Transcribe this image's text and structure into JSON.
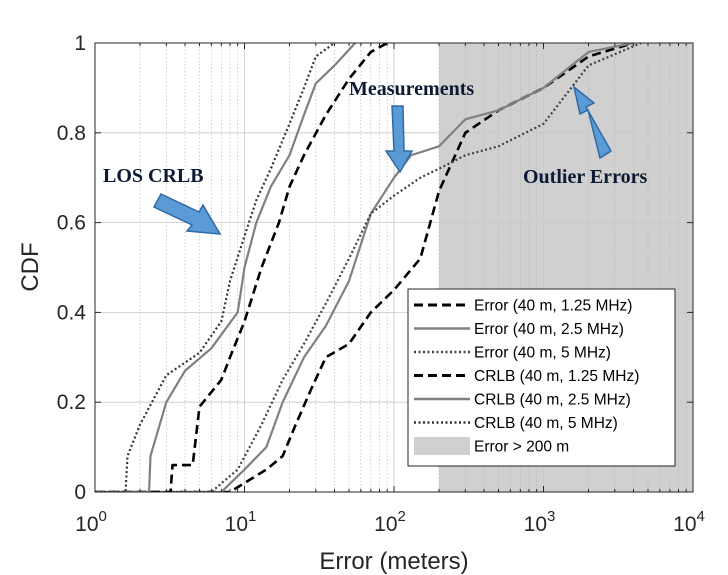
{
  "chart_data": {
    "type": "line",
    "title": "",
    "xlabel": "Error (meters)",
    "ylabel": "CDF",
    "xscale": "log",
    "xlim": [
      1,
      10000
    ],
    "ylim": [
      0,
      1
    ],
    "grid": true,
    "x_ticks": [
      {
        "value": 1,
        "base": "10",
        "exp": "0"
      },
      {
        "value": 10,
        "base": "10",
        "exp": "1"
      },
      {
        "value": 100,
        "base": "10",
        "exp": "2"
      },
      {
        "value": 1000,
        "base": "10",
        "exp": "3"
      },
      {
        "value": 10000,
        "base": "10",
        "exp": "4"
      }
    ],
    "y_ticks": [
      {
        "value": 0,
        "label": "0"
      },
      {
        "value": 0.2,
        "label": "0.2"
      },
      {
        "value": 0.4,
        "label": "0.4"
      },
      {
        "value": 0.6,
        "label": "0.6"
      },
      {
        "value": 0.8,
        "label": "0.8"
      },
      {
        "value": 1,
        "label": "1"
      }
    ],
    "shaded_region": {
      "name": "Error > 200 m",
      "x_start": 200,
      "x_end": 10000,
      "color": "#d0d0d0"
    },
    "legend_position": "lower-right",
    "series": [
      {
        "name": "Error (40 m, 1.25 MHz)",
        "style": "dashed",
        "color": "#000000",
        "x": [
          1,
          8,
          14,
          18,
          22,
          28,
          35,
          50,
          70,
          100,
          150,
          200,
          300,
          500,
          1000,
          2000,
          4000
        ],
        "y": [
          0,
          0,
          0.05,
          0.08,
          0.15,
          0.23,
          0.3,
          0.33,
          0.4,
          0.45,
          0.52,
          0.67,
          0.8,
          0.85,
          0.9,
          0.97,
          1
        ]
      },
      {
        "name": "Error (40 m, 2.5 MHz)",
        "style": "solid",
        "color": "#808080",
        "x": [
          1,
          7,
          10,
          14,
          18,
          25,
          35,
          50,
          70,
          100,
          130,
          200,
          300,
          500,
          1000,
          2000,
          4000
        ],
        "y": [
          0,
          0,
          0.05,
          0.1,
          0.2,
          0.3,
          0.37,
          0.47,
          0.62,
          0.7,
          0.75,
          0.77,
          0.83,
          0.85,
          0.9,
          0.98,
          1
        ]
      },
      {
        "name": "Error (40 m, 5 MHz)",
        "style": "dotted",
        "color": "#404040",
        "x": [
          1,
          6,
          9,
          13,
          18,
          25,
          35,
          50,
          70,
          100,
          150,
          200,
          300,
          500,
          1000,
          2000,
          4500
        ],
        "y": [
          0,
          0,
          0.05,
          0.15,
          0.25,
          0.33,
          0.42,
          0.52,
          0.62,
          0.66,
          0.7,
          0.72,
          0.75,
          0.77,
          0.82,
          0.95,
          1
        ]
      },
      {
        "name": "CRLB (40 m, 1.25 MHz)",
        "style": "dashed",
        "color": "#000000",
        "x": [
          1,
          3.2,
          3.3,
          4.5,
          5,
          7,
          8,
          10,
          13,
          17,
          20,
          25,
          35,
          50,
          70,
          90
        ],
        "y": [
          0,
          0,
          0.06,
          0.06,
          0.19,
          0.25,
          0.3,
          0.38,
          0.5,
          0.6,
          0.68,
          0.75,
          0.84,
          0.92,
          0.98,
          1
        ]
      },
      {
        "name": "CRLB (40 m, 2.5 MHz)",
        "style": "solid",
        "color": "#808080",
        "x": [
          1,
          2.3,
          2.35,
          3,
          4,
          6,
          9,
          10,
          12,
          15,
          20,
          25,
          30,
          40,
          55
        ],
        "y": [
          0,
          0,
          0.08,
          0.2,
          0.27,
          0.32,
          0.4,
          0.5,
          0.6,
          0.68,
          0.75,
          0.84,
          0.91,
          0.95,
          1
        ]
      },
      {
        "name": "CRLB (40 m, 5 MHz)",
        "style": "dotted",
        "color": "#333333",
        "x": [
          1,
          1.6,
          1.65,
          2,
          3,
          5,
          7,
          8,
          10,
          12,
          15,
          20,
          25,
          30,
          40
        ],
        "y": [
          0,
          0,
          0.08,
          0.15,
          0.26,
          0.31,
          0.38,
          0.47,
          0.57,
          0.65,
          0.72,
          0.82,
          0.9,
          0.97,
          1
        ]
      }
    ],
    "annotations": [
      {
        "text": "LOS CRLB"
      },
      {
        "text": "Measurements"
      },
      {
        "text": "Outlier Errors"
      }
    ]
  }
}
